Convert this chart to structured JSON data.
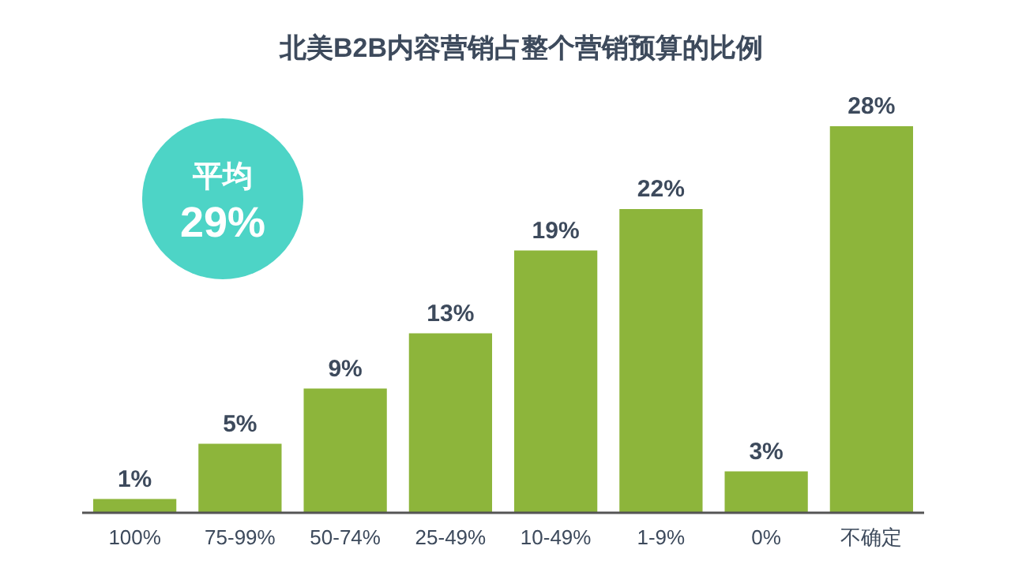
{
  "chart_data": {
    "type": "bar",
    "title": "北美B2B内容营销占整个营销预算的比例",
    "categories": [
      "100%",
      "75-99%",
      "50-74%",
      "25-49%",
      "10-49%",
      "1-9%",
      "0%",
      "不确定"
    ],
    "values": [
      1,
      5,
      9,
      13,
      19,
      22,
      3,
      28
    ],
    "value_labels": [
      "1%",
      "5%",
      "9%",
      "13%",
      "19%",
      "22%",
      "3%",
      "28%"
    ],
    "color": "#8db53b",
    "annotations": [
      "平均",
      "29%"
    ]
  }
}
